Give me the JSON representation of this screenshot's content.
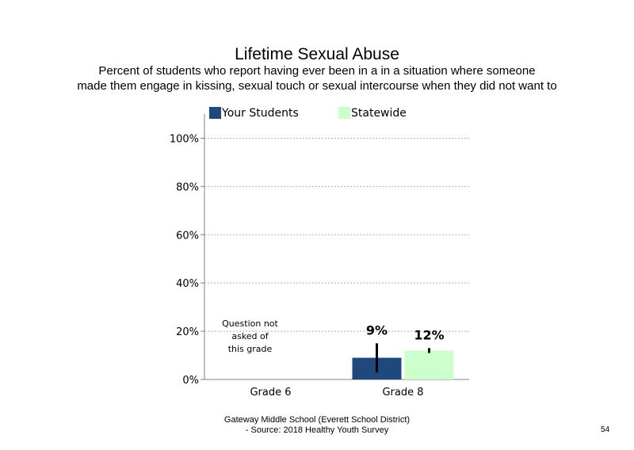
{
  "slide": {
    "title": "Lifetime Sexual Abuse",
    "subtitle_line1": "Percent of students who report having ever been in a in a situation where someone",
    "subtitle_line2": "made them engage in kissing, sexual touch or sexual intercourse when they did not want to",
    "footer_line1": "Gateway Middle School (Everett School District)",
    "footer_line2": "- Source: 2018 Healthy Youth Survey",
    "page_number": "54"
  },
  "colors": {
    "your_students": "#1f497d",
    "statewide": "#ccffcc",
    "error_bar": "#000000",
    "grid": "#b0b0b0",
    "axis": "#808080"
  },
  "chart_data": {
    "type": "bar",
    "categories": [
      "Grade 6",
      "Grade 8"
    ],
    "series": [
      {
        "name": "Your Students",
        "values": [
          null,
          9
        ],
        "labels": [
          "",
          "9%"
        ],
        "error_low": [
          null,
          3
        ],
        "error_high": [
          null,
          15
        ]
      },
      {
        "name": "Statewide",
        "values": [
          null,
          12
        ],
        "labels": [
          "",
          "12%"
        ],
        "error_low": [
          null,
          11
        ],
        "error_high": [
          null,
          13
        ]
      }
    ],
    "ylim": [
      0,
      110
    ],
    "yticks": [
      0,
      20,
      40,
      60,
      80,
      100
    ],
    "ytick_labels": [
      "0%",
      "20%",
      "40%",
      "60%",
      "80%",
      "100%"
    ],
    "grid": true,
    "legend": "top",
    "annotations": [
      {
        "category": "Grade 6",
        "lines": [
          "Question not",
          "asked of",
          "this grade"
        ]
      }
    ]
  }
}
